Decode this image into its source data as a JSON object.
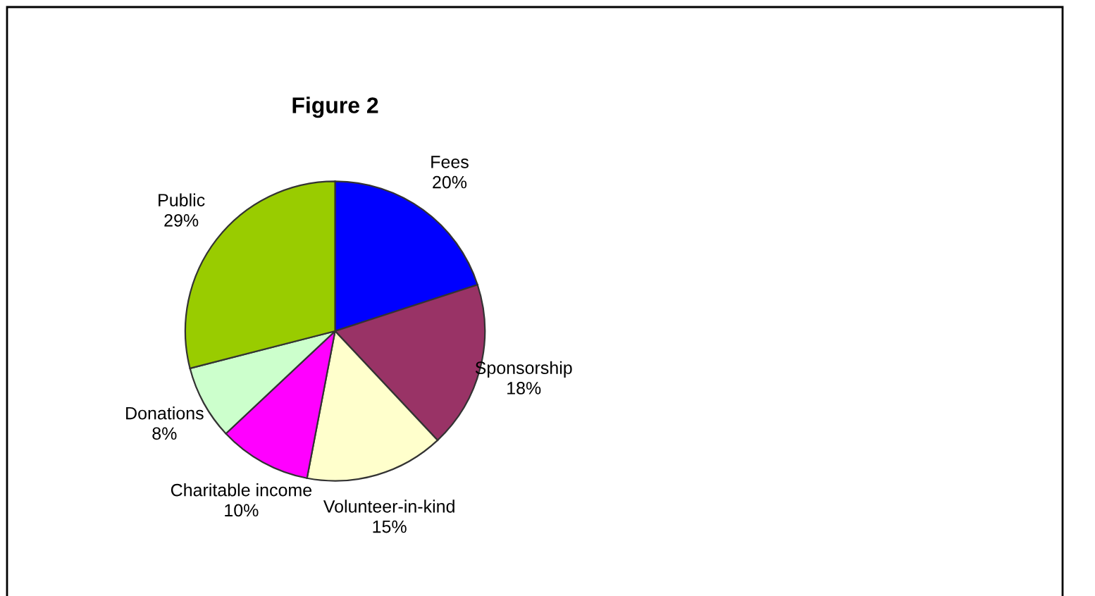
{
  "chart_data": {
    "type": "pie",
    "title": "Figure 2",
    "categories": [
      "Fees",
      "Sponsorship",
      "Volunteer-in-kind",
      "Charitable income",
      "Donations",
      "Public"
    ],
    "values": [
      20,
      18,
      15,
      10,
      8,
      29
    ],
    "colors": [
      "#0000ff",
      "#993366",
      "#ffffcc",
      "#ff00ff",
      "#ccffcc",
      "#99cc00"
    ],
    "value_labels": [
      "20%",
      "18%",
      "15%",
      "10%",
      "8%",
      "29%"
    ],
    "legend": false
  }
}
